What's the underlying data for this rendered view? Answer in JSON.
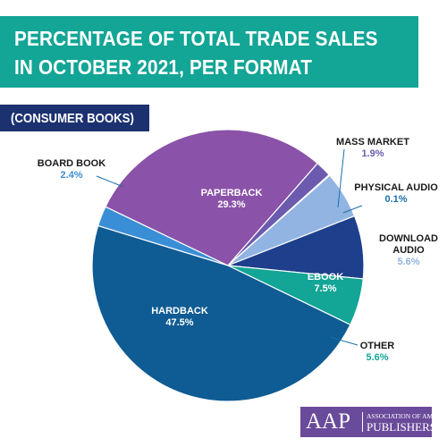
{
  "header": {
    "title_line1": "PERCENTAGE OF TOTAL TRADE SALES",
    "title_line2": "IN OCTOBER 2021, PER FORMAT",
    "subtitle": "(CONSUMER BOOKS)"
  },
  "logo": {
    "mark": "AAP",
    "line1": "ASSOCIATION OF AMERICAN",
    "line2": "PUBLISHERS"
  },
  "colors": {
    "title_banner": "#13a596",
    "subtitle_box": "#1c3170",
    "logo_box": "#6a4a9a"
  },
  "chart_data": {
    "type": "pie",
    "title": "PERCENTAGE OF TOTAL TRADE SALES IN OCTOBER 2021, PER FORMAT",
    "subtitle": "(CONSUMER BOOKS)",
    "unit": "%",
    "slices": [
      {
        "label": "BOARD BOOK",
        "label_lines": [
          "BOARD BOOK"
        ],
        "value": 2.4,
        "value_text": "2.4%",
        "color": "#3a8ed6"
      },
      {
        "label": "PAPERBACK",
        "label_lines": [
          "PAPERBACK"
        ],
        "value": 29.3,
        "value_text": "29.3%",
        "color": "#8a52a8"
      },
      {
        "label": "MASS MARKET",
        "label_lines": [
          "MASS MARKET"
        ],
        "value": 1.9,
        "value_text": "1.9%",
        "color": "#6b5aae"
      },
      {
        "label": "PHYSICAL AUDIO",
        "label_lines": [
          "PHYSICAL AUDIO"
        ],
        "value": 0.1,
        "value_text": "0.1%",
        "color": "#1a6fa8"
      },
      {
        "label": "DOWNLOAD AUDIO",
        "label_lines": [
          "DOWNLOAD",
          "AUDIO"
        ],
        "value": 5.6,
        "value_text": "5.6%",
        "color": "#92b4e2"
      },
      {
        "label": "EBOOK",
        "label_lines": [
          "EBOOK"
        ],
        "value": 7.5,
        "value_text": "7.5%",
        "color": "#1d3f8c"
      },
      {
        "label": "OTHER",
        "label_lines": [
          "OTHER"
        ],
        "value": 5.6,
        "value_text": "5.6%",
        "color": "#13a596"
      },
      {
        "label": "HARDBACK",
        "label_lines": [
          "HARDBACK"
        ],
        "value": 47.5,
        "value_text": "47.5%",
        "color": "#0f5b93"
      }
    ]
  }
}
